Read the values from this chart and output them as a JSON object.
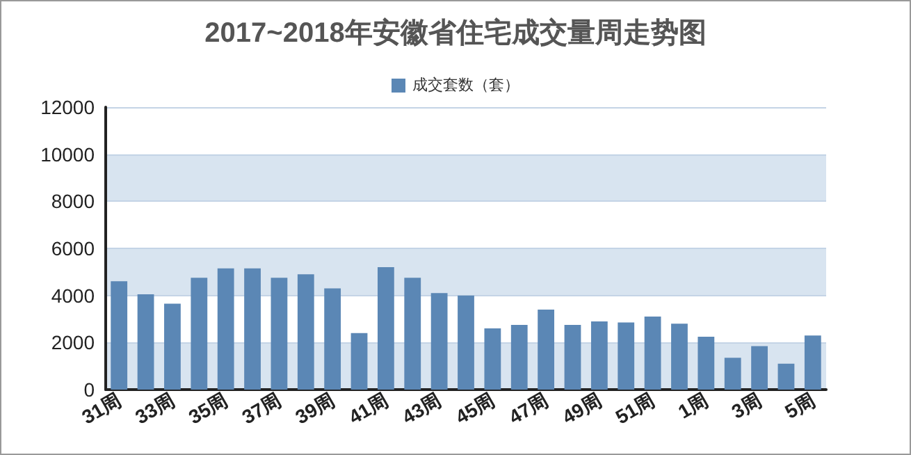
{
  "chart_data": {
    "type": "bar",
    "title": "2017~2018年安徽省住宅成交量周走势图",
    "categories": [
      "31周",
      null,
      "33周",
      null,
      "35周",
      null,
      "37周",
      null,
      "39周",
      null,
      "41周",
      null,
      "43周",
      null,
      "45周",
      null,
      "47周",
      null,
      "49周",
      null,
      "51周",
      null,
      "1周",
      null,
      "3周",
      null,
      "5周"
    ],
    "series": [
      {
        "name": "成交套数（套）",
        "color": "#5b87b5",
        "values": [
          4600,
          4050,
          3650,
          4750,
          5150,
          5150,
          4750,
          4900,
          4300,
          2400,
          5200,
          4750,
          4100,
          4000,
          2600,
          2750,
          3400,
          2750,
          2900,
          2850,
          3100,
          2800,
          2250,
          1350,
          1850,
          1100,
          2300
        ]
      }
    ],
    "ylim": [
      0,
      12000
    ],
    "yticks": [
      0,
      2000,
      4000,
      6000,
      8000,
      10000,
      12000
    ],
    "grid": "y",
    "legend": "top"
  }
}
